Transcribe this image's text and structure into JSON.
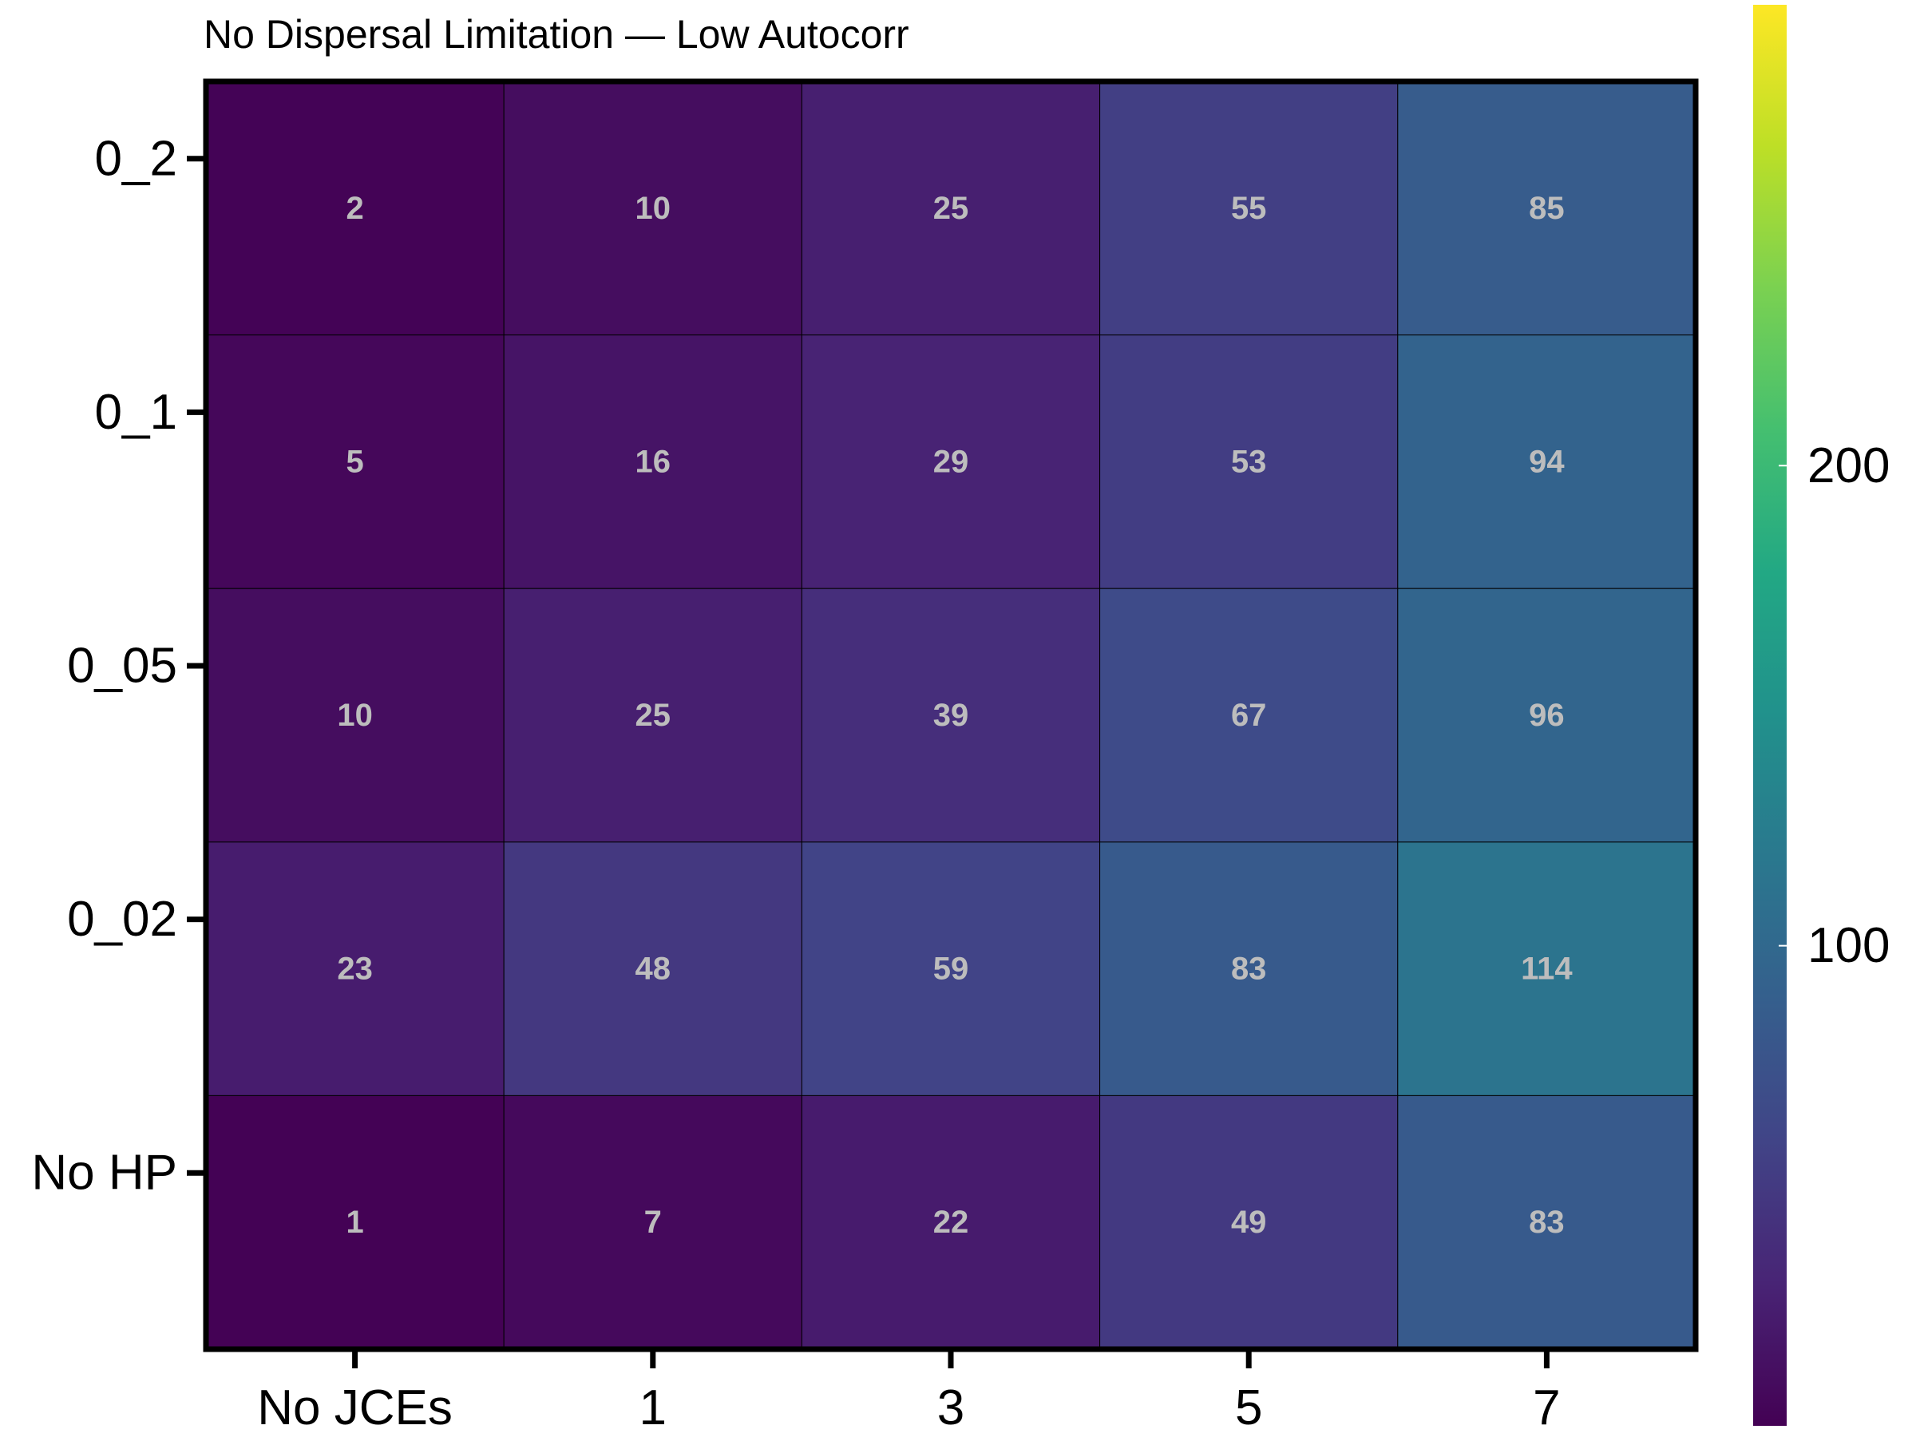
{
  "chart_data": {
    "type": "heatmap",
    "title": "No Dispersal Limitation — Low Autocorr",
    "xlabel": "",
    "ylabel": "",
    "x_categories": [
      "No JCEs",
      "1",
      "3",
      "5",
      "7"
    ],
    "y_categories": [
      "0_2",
      "0_1",
      "0_05",
      "0_02",
      "No HP"
    ],
    "values": [
      [
        2,
        10,
        25,
        55,
        85
      ],
      [
        5,
        16,
        29,
        53,
        94
      ],
      [
        10,
        25,
        39,
        67,
        96
      ],
      [
        23,
        48,
        59,
        83,
        114
      ],
      [
        1,
        7,
        22,
        49,
        83
      ]
    ],
    "colormap": "viridis",
    "colorbar": {
      "range": [
        0,
        296
      ],
      "ticks": [
        100,
        200
      ],
      "tick_labels": [
        "100",
        "200"
      ]
    },
    "grid": false,
    "annotations": "cell values shown"
  }
}
